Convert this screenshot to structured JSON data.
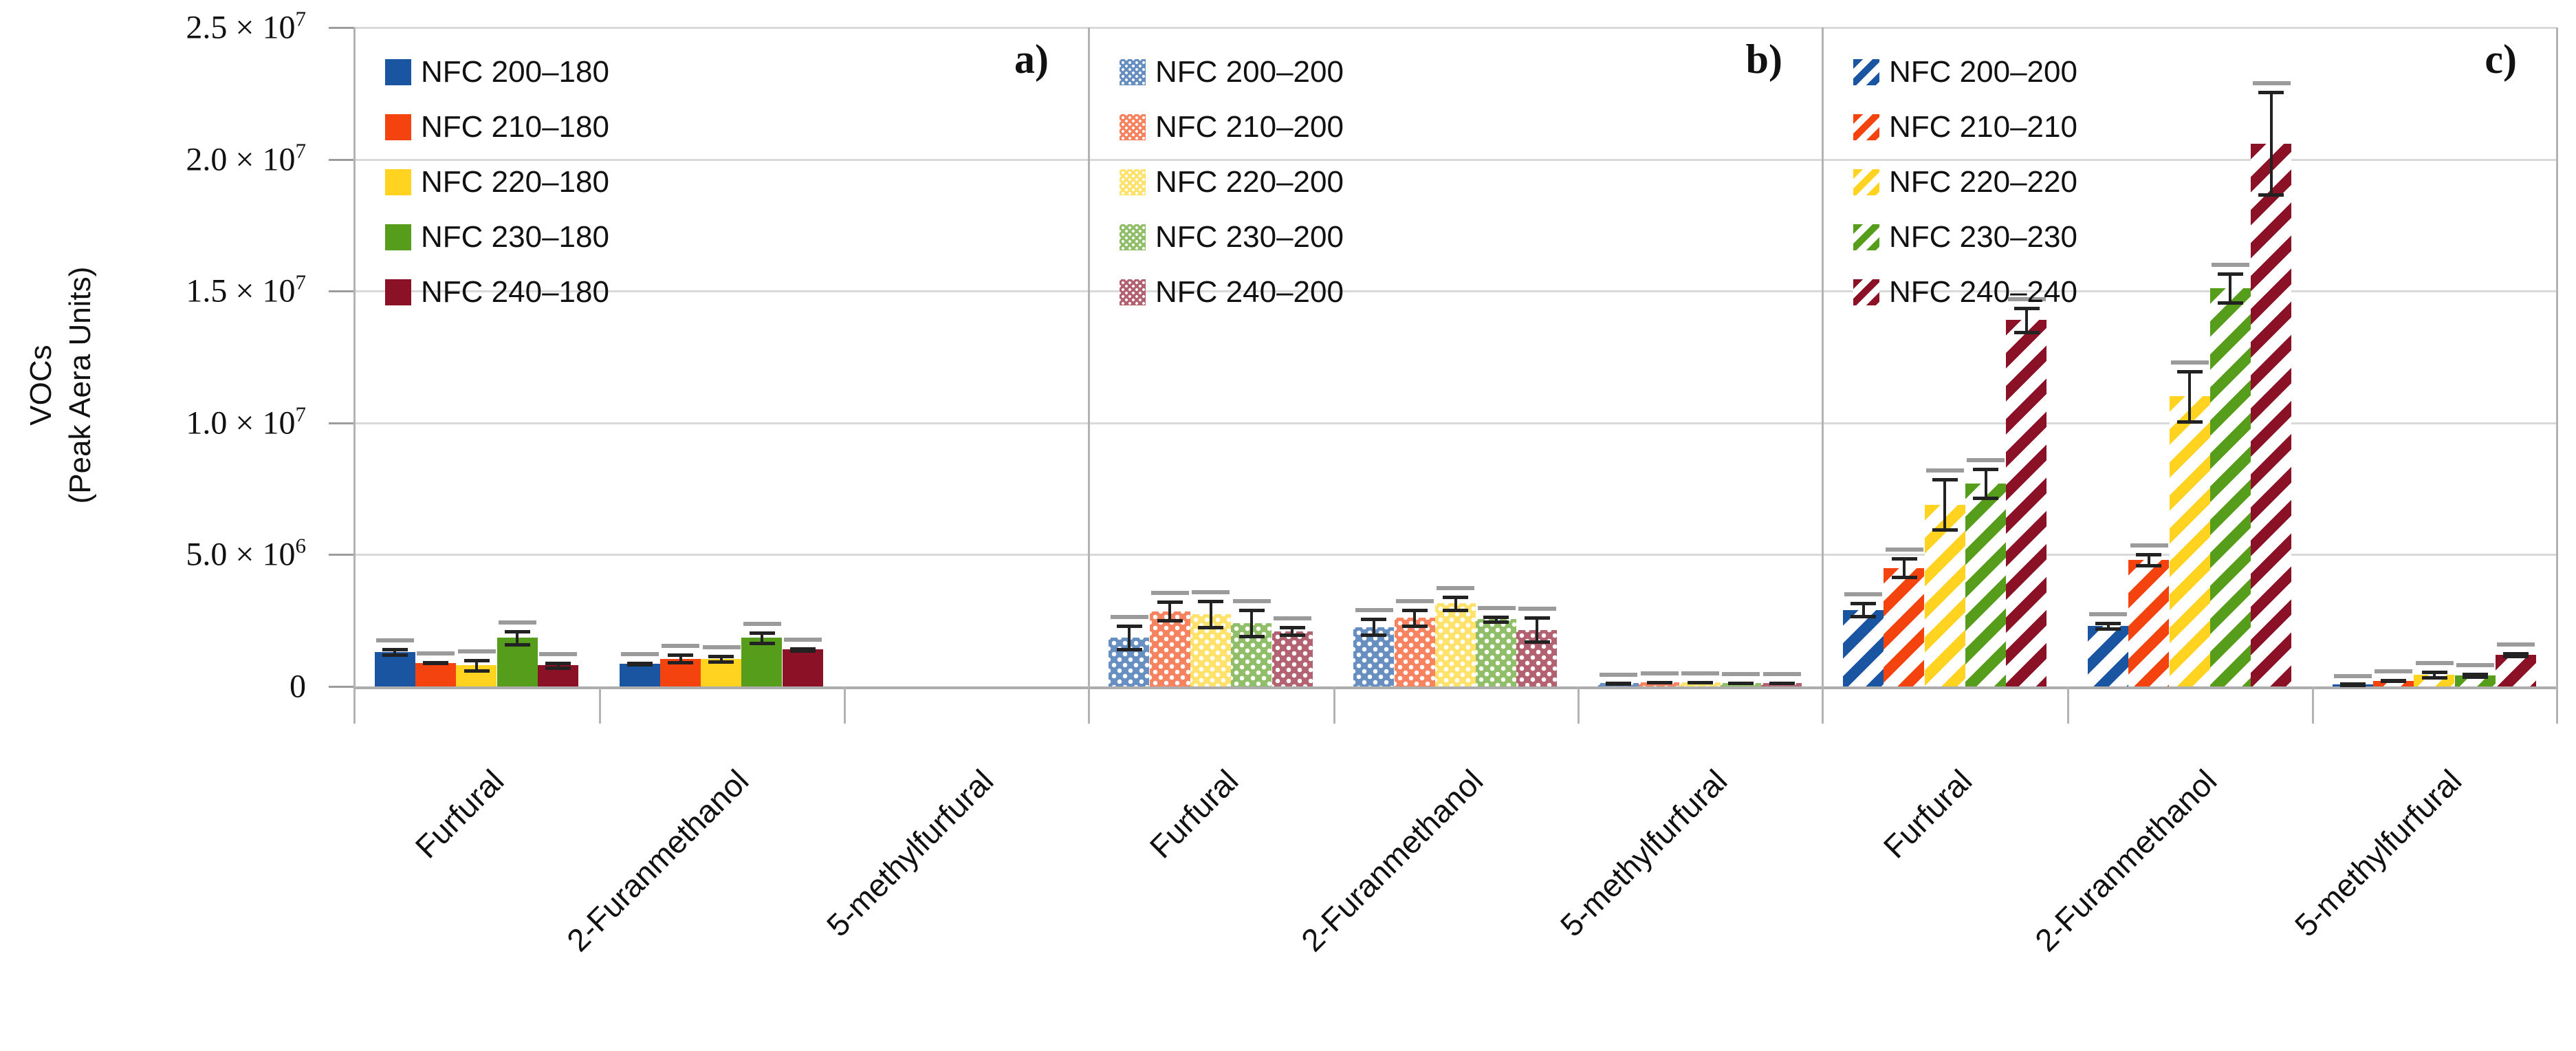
{
  "chart_data": {
    "type": "bar",
    "title": "",
    "ylabel_line1": "VOCs",
    "ylabel_line2": "(Peak Aera Units)",
    "ylim": [
      0,
      25000000
    ],
    "grid": true,
    "legend_position": "top-left-inside-each-panel",
    "yticks": [
      {
        "value": 0,
        "base": "0",
        "exp": ""
      },
      {
        "value": 5000000,
        "base": "5.0 × 10",
        "exp": "6"
      },
      {
        "value": 10000000,
        "base": "1.0 × 10",
        "exp": "7"
      },
      {
        "value": 15000000,
        "base": "1.5 × 10",
        "exp": "7"
      },
      {
        "value": 20000000,
        "base": "2.0 × 10",
        "exp": "7"
      },
      {
        "value": 25000000,
        "base": "2.5 × 10",
        "exp": "7"
      }
    ],
    "categories": [
      "Furfural",
      "2-Furanmethanol",
      "5-methylfurfural"
    ],
    "palette": [
      "#1A55A2",
      "#F4430F",
      "#FFD320",
      "#579D1C",
      "#8B1126"
    ],
    "colors": {
      "gridline": "#d9d9d9",
      "axis": "#b3b3b3",
      "baseline": "#adadad",
      "error_bar": "#222222",
      "error_cap_secondary": "#9b9b9b"
    },
    "panels": [
      {
        "label": "a)",
        "pattern": "solid",
        "series": [
          {
            "name": "NFC 200–180",
            "values": [
              1300000,
              850000,
              0
            ],
            "errors": [
              150000,
              80000,
              0
            ]
          },
          {
            "name": "NFC 210–180",
            "values": [
              900000,
              1050000,
              0
            ],
            "errors": [
              60000,
              200000,
              0
            ]
          },
          {
            "name": "NFC 220–180",
            "values": [
              800000,
              1050000,
              0
            ],
            "errors": [
              250000,
              150000,
              0
            ]
          },
          {
            "name": "NFC 230–180",
            "values": [
              1850000,
              1850000,
              0
            ],
            "errors": [
              300000,
              250000,
              0
            ]
          },
          {
            "name": "NFC 240–180",
            "values": [
              800000,
              1400000,
              0
            ],
            "errors": [
              150000,
              100000,
              0
            ]
          }
        ]
      },
      {
        "label": "b)",
        "pattern": "dotted",
        "series": [
          {
            "name": "NFC 200–200",
            "values": [
              1850000,
              2250000,
              120000
            ],
            "errors": [
              500000,
              350000,
              40000
            ]
          },
          {
            "name": "NFC 210–200",
            "values": [
              2850000,
              2600000,
              150000
            ],
            "errors": [
              400000,
              350000,
              50000
            ]
          },
          {
            "name": "NFC 220–200",
            "values": [
              2750000,
              3150000,
              150000
            ],
            "errors": [
              550000,
              300000,
              50000
            ]
          },
          {
            "name": "NFC 230–200",
            "values": [
              2400000,
              2550000,
              130000
            ],
            "errors": [
              550000,
              150000,
              40000
            ]
          },
          {
            "name": "NFC 240–200",
            "values": [
              2100000,
              2150000,
              130000
            ],
            "errors": [
              200000,
              500000,
              40000
            ]
          }
        ]
      },
      {
        "label": "c)",
        "pattern": "striped",
        "series": [
          {
            "name": "NFC 200–200",
            "values": [
              2900000,
              2300000,
              70000
            ],
            "errors": [
              300000,
              150000,
              30000
            ]
          },
          {
            "name": "NFC 210–210",
            "values": [
              4500000,
              4800000,
              220000
            ],
            "errors": [
              400000,
              250000,
              60000
            ]
          },
          {
            "name": "NFC 220–220",
            "values": [
              6900000,
              11000000,
              450000
            ],
            "errors": [
              1000000,
              1000000,
              150000
            ]
          },
          {
            "name": "NFC 230–230",
            "values": [
              7700000,
              15100000,
              420000
            ],
            "errors": [
              600000,
              600000,
              100000
            ]
          },
          {
            "name": "NFC 240–240",
            "values": [
              13900000,
              20600000,
              1200000
            ],
            "errors": [
              500000,
              2000000,
              100000
            ]
          }
        ]
      }
    ]
  }
}
